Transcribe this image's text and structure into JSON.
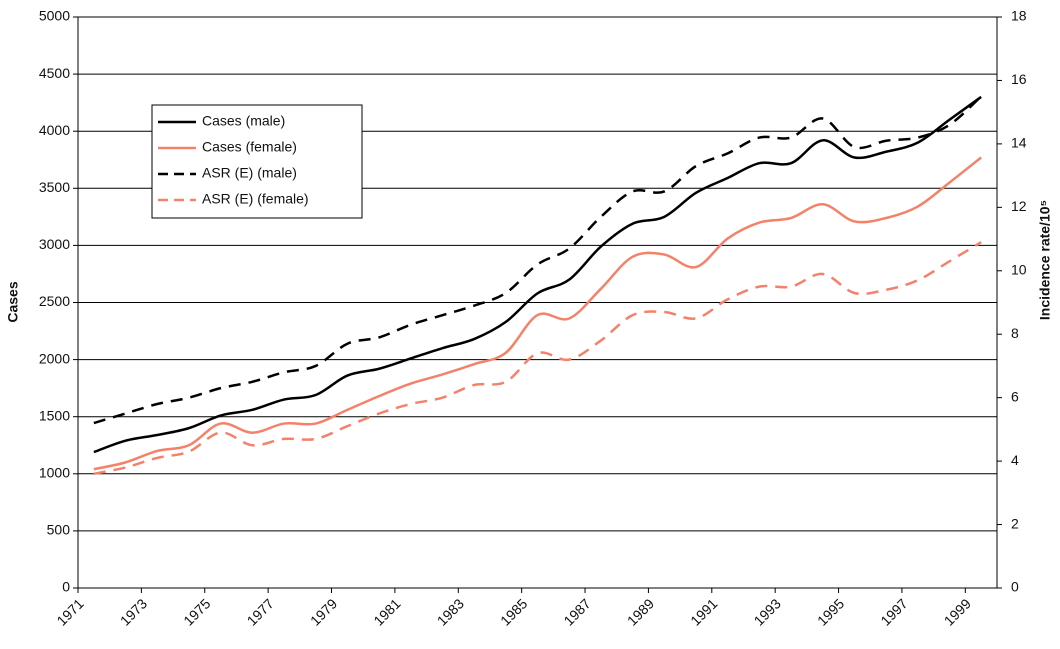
{
  "chart_data": {
    "type": "line",
    "ylabel": "Cases",
    "y2label": "Incidence rate/10⁵",
    "xlim": [
      1971,
      2000
    ],
    "xticks": [
      1971,
      1973,
      1975,
      1977,
      1979,
      1981,
      1983,
      1985,
      1987,
      1989,
      1991,
      1993,
      1995,
      1997,
      1999
    ],
    "ylim": [
      0,
      5000
    ],
    "yticks": [
      0,
      500,
      1000,
      1500,
      2000,
      2500,
      3000,
      3500,
      4000,
      4500,
      5000
    ],
    "y2lim": [
      0,
      18
    ],
    "y2ticks": [
      0,
      2,
      4,
      6,
      8,
      10,
      12,
      14,
      16,
      18
    ],
    "grid": true,
    "legend": "upper left",
    "x": [
      1971.5,
      1972.5,
      1973.5,
      1974.5,
      1975.5,
      1976.5,
      1977.5,
      1978.5,
      1979.5,
      1980.5,
      1981.5,
      1982.5,
      1983.5,
      1984.5,
      1985.5,
      1986.5,
      1987.5,
      1988.5,
      1989.5,
      1990.5,
      1991.5,
      1992.5,
      1993.5,
      1994.5,
      1995.5,
      1996.5,
      1997.5,
      1998.5,
      1999.5
    ],
    "series": [
      {
        "name": "Cases (male)",
        "color": "#000000",
        "dashed": false,
        "axis": "y",
        "values": [
          1190,
          1290,
          1340,
          1400,
          1510,
          1560,
          1650,
          1690,
          1860,
          1920,
          2010,
          2100,
          2180,
          2330,
          2580,
          2700,
          2990,
          3190,
          3250,
          3460,
          3590,
          3720,
          3720,
          3920,
          3770,
          3820,
          3900,
          4100,
          4300
        ]
      },
      {
        "name": "Cases (female)",
        "color": "#f4826a",
        "dashed": false,
        "axis": "y",
        "values": [
          1040,
          1100,
          1200,
          1250,
          1440,
          1360,
          1440,
          1440,
          1560,
          1680,
          1790,
          1870,
          1960,
          2060,
          2390,
          2360,
          2620,
          2900,
          2920,
          2810,
          3060,
          3200,
          3240,
          3360,
          3210,
          3240,
          3340,
          3550,
          3770
        ]
      },
      {
        "name": "ASR (E) (male)",
        "color": "#000000",
        "dashed": true,
        "axis": "y2",
        "values": [
          5.2,
          5.5,
          5.8,
          6.0,
          6.3,
          6.5,
          6.8,
          7.0,
          7.7,
          7.9,
          8.3,
          8.6,
          8.9,
          9.3,
          10.2,
          10.7,
          11.7,
          12.5,
          12.5,
          13.3,
          13.7,
          14.2,
          14.2,
          14.8,
          13.9,
          14.1,
          14.2,
          14.6,
          15.5
        ]
      },
      {
        "name": "ASR (E) (female)",
        "color": "#f4826a",
        "dashed": true,
        "axis": "y2",
        "values": [
          3.6,
          3.8,
          4.1,
          4.3,
          4.9,
          4.5,
          4.7,
          4.7,
          5.1,
          5.5,
          5.8,
          6.0,
          6.4,
          6.5,
          7.4,
          7.2,
          7.8,
          8.6,
          8.7,
          8.5,
          9.1,
          9.5,
          9.5,
          9.9,
          9.3,
          9.4,
          9.7,
          10.3,
          10.9
        ]
      }
    ]
  }
}
